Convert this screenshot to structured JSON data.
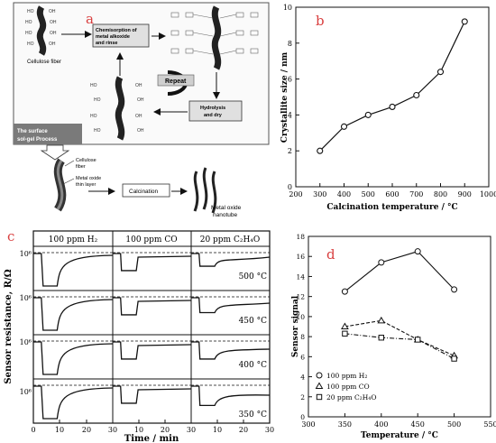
{
  "panel_a": {
    "letter": "a",
    "cellulose_label": "Cellulose fiber",
    "chemisorption_label": [
      "Chemisorption of",
      "metal alkoxide",
      "and rinse"
    ],
    "repeat_label": "Repeat",
    "hydrolysis_label": [
      "Hydrolysis",
      "and dry"
    ],
    "process_label": [
      "The surface",
      "sol-gel Process"
    ],
    "fiber_label": [
      "Cellulose",
      "fiber"
    ],
    "oxide_label": [
      "Metal oxide",
      "thin layer"
    ],
    "calcination_label": "Calcination",
    "nanotube_label": [
      "Metal oxide",
      "nanotube"
    ],
    "colors": {
      "letter": "#d94040",
      "box_fill": "#e0e0e0",
      "process_fill": "#7a7a7a"
    }
  },
  "panel_b": {
    "letter": "b",
    "letter_color": "#d94040"
  },
  "panel_c": {
    "letter": "c",
    "letter_color": "#d94040",
    "gas_headers": [
      "100 ppm H₂",
      "100 ppm CO",
      "20 ppm C₂H₄O"
    ],
    "temps": [
      "500 °C",
      "450 °C",
      "400 °C",
      "350 °C"
    ],
    "y_tick": "10⁶",
    "ylabel": "Sensor resistance, R/Ω",
    "xlabel": "Time / min",
    "xticks": [
      "0",
      "10",
      "20",
      "30",
      "10",
      "20",
      "30",
      "10",
      "20",
      "30"
    ]
  },
  "panel_d": {
    "letter": "d",
    "letter_color": "#d94040"
  },
  "chart_data": [
    {
      "type": "line",
      "x": [
        300,
        400,
        500,
        600,
        700,
        800,
        900
      ],
      "series": [
        {
          "values": [
            2.0,
            3.35,
            4.0,
            4.45,
            5.1,
            6.4,
            9.2
          ],
          "marker": "circle"
        }
      ],
      "xlabel": "Calcination temperature / °C",
      "ylabel": "Crystallite size / nm",
      "xlim": [
        200,
        1000
      ],
      "ylim": [
        0,
        10
      ],
      "xticks": [
        "200",
        "300",
        "400",
        "500",
        "600",
        "700",
        "800",
        "900",
        "1000"
      ],
      "yticks": [
        "0",
        "2",
        "4",
        "6",
        "8",
        "10"
      ]
    },
    {
      "type": "line",
      "x": [
        350,
        400,
        450,
        500
      ],
      "series": [
        {
          "name": "100 ppm H₂",
          "values": [
            12.5,
            15.4,
            16.5,
            12.7
          ],
          "marker": "circle",
          "line": "solid"
        },
        {
          "name": "100 ppm CO",
          "values": [
            9.0,
            9.6,
            7.7,
            6.1
          ],
          "marker": "triangle",
          "line": "dashed"
        },
        {
          "name": "20 ppm C₂H₄O",
          "values": [
            8.3,
            7.9,
            7.7,
            5.8
          ],
          "marker": "square",
          "line": "dashdot"
        }
      ],
      "xlabel": "Temperature / °C",
      "ylabel": "Sensor signal",
      "xlim": [
        300,
        550
      ],
      "ylim": [
        0,
        18
      ],
      "xticks": [
        "300",
        "350",
        "400",
        "450",
        "500",
        "550"
      ],
      "yticks": [
        "0",
        "2",
        "4",
        "6",
        "8",
        "10",
        "12",
        "14",
        "16",
        "18"
      ],
      "legend": "bottom-left"
    }
  ]
}
